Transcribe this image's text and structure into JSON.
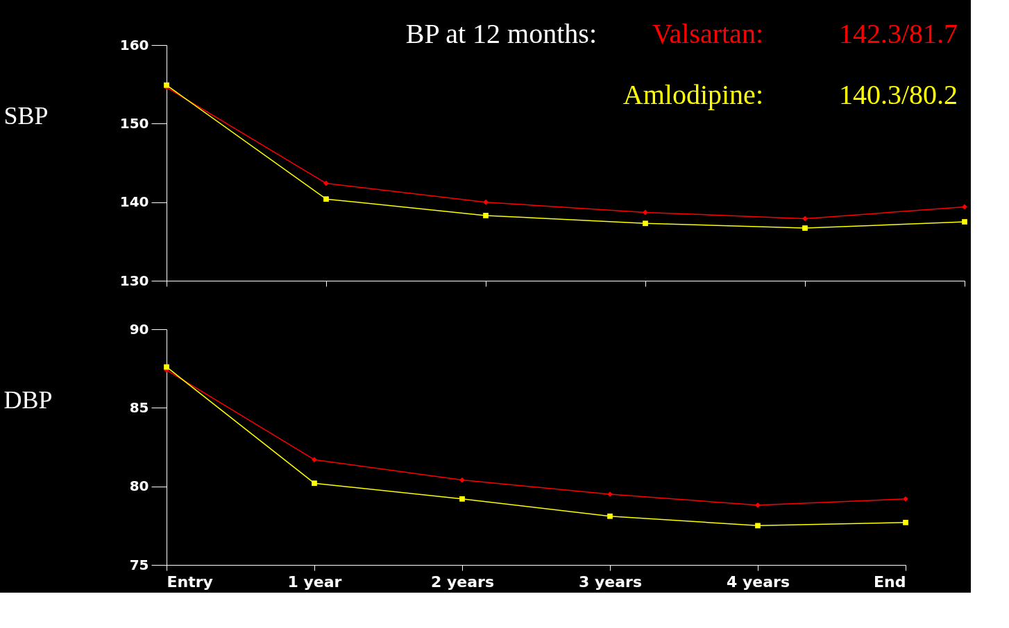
{
  "chart_data": [
    {
      "type": "line",
      "title": "BP at 12 months:",
      "ylabel": "SBP",
      "categories": [
        null,
        null,
        null,
        null,
        null,
        null
      ],
      "ylim": [
        130,
        160
      ],
      "yticks": [
        130,
        140,
        150,
        160
      ],
      "grid": false,
      "tick_labels": "y",
      "legend": "top right",
      "annotations": [
        "142.3/81.7",
        "140.3/80.2"
      ],
      "series": [
        {
          "name": "Valsartan:",
          "color": "#ff0000",
          "marker": "diamond",
          "values": [
            154.6,
            142.4,
            140.0,
            138.7,
            137.9,
            139.4
          ]
        },
        {
          "name": "Amlodipine:",
          "color": "#ffff00",
          "marker": "square",
          "values": [
            154.9,
            140.4,
            138.3,
            137.3,
            136.7,
            137.5
          ]
        }
      ]
    },
    {
      "type": "line",
      "ylabel": "DBP",
      "categories": [
        "Entry",
        "1 year",
        "2 years",
        "3 years",
        "4 years",
        "End"
      ],
      "ylim": [
        75,
        90
      ],
      "yticks": [
        75,
        80,
        85,
        90
      ],
      "grid": false,
      "series": [
        {
          "color": "#ff0000",
          "marker": "diamond",
          "values": [
            87.4,
            81.7,
            80.4,
            79.5,
            78.8,
            79.2
          ]
        },
        {
          "color": "#ffff00",
          "marker": "square",
          "values": [
            87.6,
            80.2,
            79.2,
            78.1,
            77.5,
            77.7
          ]
        }
      ]
    }
  ]
}
